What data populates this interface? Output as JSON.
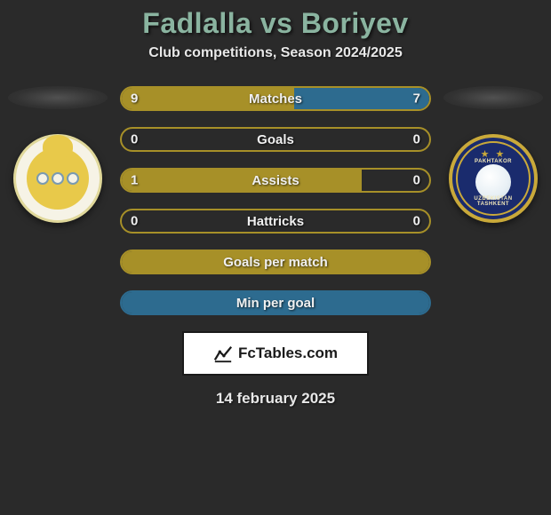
{
  "title": "Fadlalla vs Boriyev",
  "subtitle": "Club competitions, Season 2024/2025",
  "title_color": "#8ab4a0",
  "text_color": "#e8e8e8",
  "background_color": "#2a2a2a",
  "left_team": {
    "crest_bg": "#f6f3e6",
    "crest_accent": "#e8c94a"
  },
  "right_team": {
    "crest_bg": "#1a2b6d",
    "crest_accent": "#c9a93a",
    "top_text": "PAKHTAKOR",
    "bot_text": "UZBEKISTAN TASHKENT"
  },
  "bar_style": {
    "height": 28,
    "border_radius": 14,
    "label_fontsize": 15
  },
  "stats": [
    {
      "label": "Matches",
      "left_value": 9,
      "right_value": 7,
      "left_fill_pct": 56,
      "right_fill_pct": 44,
      "left_color": "#a79028",
      "right_color": "#2d6b8f",
      "border_color": "#a79028"
    },
    {
      "label": "Goals",
      "left_value": 0,
      "right_value": 0,
      "left_fill_pct": 0,
      "right_fill_pct": 0,
      "left_color": "#a79028",
      "right_color": "#2d6b8f",
      "border_color": "#a79028"
    },
    {
      "label": "Assists",
      "left_value": 1,
      "right_value": 0,
      "left_fill_pct": 78,
      "right_fill_pct": 0,
      "left_color": "#a79028",
      "right_color": "#2d6b8f",
      "border_color": "#a79028"
    },
    {
      "label": "Hattricks",
      "left_value": 0,
      "right_value": 0,
      "left_fill_pct": 0,
      "right_fill_pct": 0,
      "left_color": "#a79028",
      "right_color": "#2d6b8f",
      "border_color": "#a79028"
    },
    {
      "label": "Goals per match",
      "left_value": "",
      "right_value": "",
      "left_fill_pct": 100,
      "right_fill_pct": 0,
      "left_color": "#a79028",
      "right_color": "#2d6b8f",
      "border_color": "#a79028"
    },
    {
      "label": "Min per goal",
      "left_value": "",
      "right_value": "",
      "left_fill_pct": 0,
      "right_fill_pct": 100,
      "left_color": "#a79028",
      "right_color": "#2d6b8f",
      "border_color": "#2d6b8f"
    }
  ],
  "brand": {
    "text": "FcTables.com",
    "bg": "#ffffff",
    "text_color": "#1a1a1a"
  },
  "date": "14 february 2025"
}
